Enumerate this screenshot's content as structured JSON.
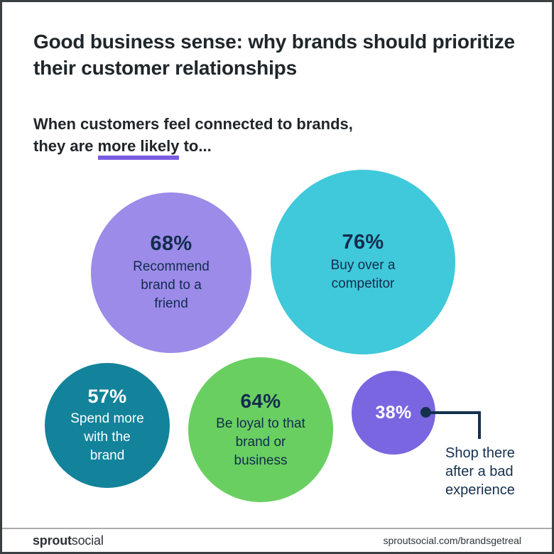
{
  "header": {
    "title_lines": [
      "Good business sense: why brands should prioritize",
      "their customer relationships"
    ],
    "subtitle_line1": "When customers feel connected to brands,",
    "subtitle_line2_pre": "they are",
    "subtitle_line2_underlined": "more likely",
    "subtitle_line2_post": "to..."
  },
  "chart_data": {
    "type": "bubble",
    "title": "Good business sense: why brands should prioritize their customer relationships",
    "subtitle": "When customers feel connected to brands, they are more likely to...",
    "unit": "percent",
    "legend": "none",
    "accent_underline_color": "#7a5ce4",
    "points": [
      {
        "value": 68,
        "value_label": "68%",
        "label": "Recommend brand to a friend",
        "color": "#9c8be9",
        "text_color": "#122c4e",
        "label_placement": "inside"
      },
      {
        "value": 76,
        "value_label": "76%",
        "label": "Buy over a competitor",
        "color": "#3fc9da",
        "text_color": "#122c4e",
        "label_placement": "inside"
      },
      {
        "value": 57,
        "value_label": "57%",
        "label": "Spend more with the brand",
        "color": "#12839a",
        "text_color": "#ffffff",
        "label_placement": "inside"
      },
      {
        "value": 64,
        "value_label": "64%",
        "label": "Be loyal to that brand or business",
        "color": "#69cf61",
        "text_color": "#122c4e",
        "label_placement": "inside"
      },
      {
        "value": 38,
        "value_label": "38%",
        "label": "Shop there after a bad experience",
        "color": "#7a66e0",
        "text_color": "#ffffff",
        "label_placement": "outside-callout",
        "callout_label_color": "#14304f"
      }
    ]
  },
  "footer": {
    "logo_bold": "sprout",
    "logo_light": "social",
    "url": "sproutsocial.com/brandsgetreal"
  }
}
